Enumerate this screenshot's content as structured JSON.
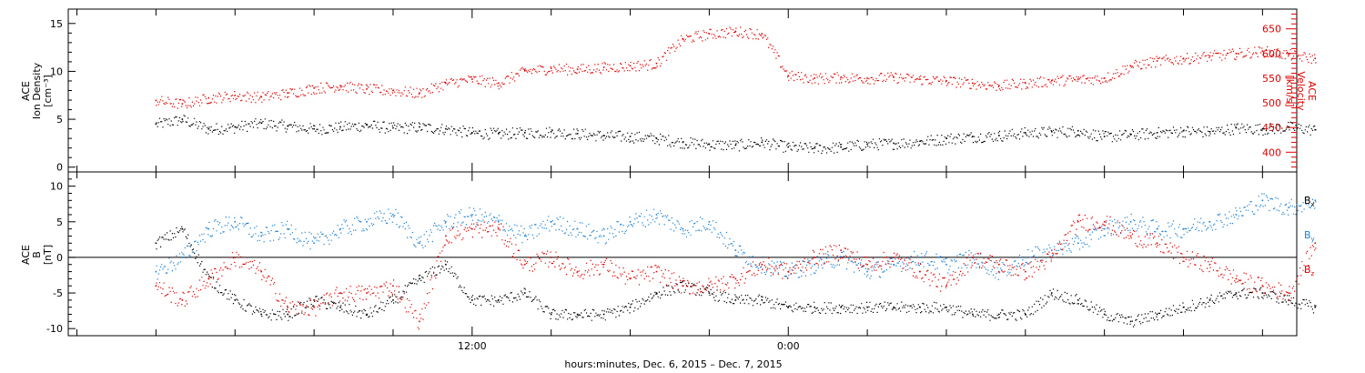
{
  "chart_data": [
    {
      "panel": "top",
      "type": "scatter",
      "ylabel_left": [
        "ACE",
        "Ion Density",
        "[cm⁻³]"
      ],
      "ylabel_right": [
        "ACE",
        "Velocity",
        "[km/s]"
      ],
      "ylim_left": [
        -0.5,
        16.5
      ],
      "yticks_left": [
        0,
        5,
        10,
        15
      ],
      "ylim_right": [
        360,
        690
      ],
      "yticks_right": [
        400,
        450,
        500,
        550,
        600,
        650
      ],
      "colors": {
        "density": "#000000",
        "velocity": "#e00000"
      },
      "series": [
        {
          "axis": "left",
          "color": "black",
          "x_hours": [
            0,
            1,
            2,
            3,
            4,
            5,
            6,
            7,
            8,
            9,
            10,
            11,
            12,
            13,
            14,
            15,
            16,
            17,
            18,
            19,
            20,
            21,
            22,
            23,
            24,
            25,
            26,
            27,
            28,
            29,
            30,
            31,
            32,
            33,
            34,
            35,
            36,
            37,
            38,
            39,
            40,
            41,
            42,
            43,
            44
          ],
          "values": [
            4.5,
            5.0,
            4.0,
            4.2,
            4.6,
            4.3,
            4.0,
            4.2,
            4.4,
            4.1,
            4.2,
            4.0,
            3.6,
            3.5,
            3.6,
            3.7,
            3.5,
            3.3,
            3.2,
            3.0,
            2.6,
            2.4,
            2.3,
            2.6,
            2.1,
            2.0,
            2.1,
            2.4,
            2.5,
            2.7,
            3.0,
            3.2,
            3.3,
            3.6,
            3.7,
            3.8,
            3.2,
            3.4,
            3.6,
            3.8,
            3.7,
            4.1,
            4.0,
            4.2,
            3.9
          ]
        },
        {
          "axis": "right",
          "color": "red",
          "x_hours": [
            0,
            1,
            2,
            3,
            4,
            5,
            6,
            7,
            8,
            9,
            10,
            11,
            12,
            13,
            14,
            15,
            16,
            17,
            18,
            19,
            20,
            21,
            22,
            23,
            24,
            25,
            26,
            27,
            28,
            29,
            30,
            31,
            32,
            33,
            34,
            35,
            36,
            37,
            38,
            39,
            40,
            41,
            42,
            43,
            44
          ],
          "values": [
            505,
            498,
            510,
            515,
            512,
            520,
            530,
            535,
            528,
            525,
            520,
            540,
            548,
            540,
            565,
            570,
            568,
            572,
            575,
            580,
            630,
            640,
            645,
            640,
            555,
            550,
            552,
            550,
            552,
            548,
            545,
            540,
            535,
            540,
            545,
            548,
            550,
            575,
            585,
            590,
            595,
            600,
            605,
            598,
            590
          ]
        }
      ]
    },
    {
      "panel": "bottom",
      "type": "scatter",
      "ylabel_left": [
        "ACE",
        "B",
        "[nT]"
      ],
      "ylim": [
        -11,
        12
      ],
      "yticks": [
        -10,
        -5,
        0,
        5,
        10
      ],
      "zero_line": true,
      "colors": {
        "Bx": "#000000",
        "By": "#1a7fd4",
        "Bz": "#e00000"
      },
      "legend": [
        {
          "label": "B",
          "sub": "x",
          "color": "#000000"
        },
        {
          "label": "B",
          "sub": "y",
          "color": "#1a7fd4"
        },
        {
          "label": "B",
          "sub": "z",
          "color": "#e00000"
        }
      ],
      "series": [
        {
          "name": "Bx",
          "color": "black",
          "x_hours": [
            0,
            1,
            2,
            3,
            4,
            5,
            6,
            7,
            8,
            9,
            10,
            11,
            12,
            13,
            14,
            15,
            16,
            17,
            18,
            19,
            20,
            21,
            22,
            23,
            24,
            25,
            26,
            27,
            28,
            29,
            30,
            31,
            32,
            33,
            34,
            35,
            36,
            37,
            38,
            39,
            40,
            41,
            42,
            43,
            44
          ],
          "values": [
            2,
            4,
            -3,
            -6,
            -8,
            -8,
            -6,
            -7,
            -8,
            -6,
            -3,
            -1,
            -6,
            -6,
            -5,
            -8,
            -8,
            -8,
            -7,
            -5,
            -4,
            -5,
            -6,
            -6,
            -7,
            -7,
            -7,
            -7,
            -7,
            -7,
            -7,
            -8,
            -8,
            -8,
            -5,
            -6,
            -8,
            -9,
            -8,
            -7,
            -6,
            -5,
            -5,
            -6,
            -7
          ]
        },
        {
          "name": "By",
          "color": "blue",
          "x_hours": [
            0,
            1,
            2,
            3,
            4,
            5,
            6,
            7,
            8,
            9,
            10,
            11,
            12,
            13,
            14,
            15,
            16,
            17,
            18,
            19,
            20,
            21,
            22,
            23,
            24,
            25,
            26,
            27,
            28,
            29,
            30,
            31,
            32,
            33,
            34,
            35,
            36,
            37,
            38,
            39,
            40,
            41,
            42,
            43,
            44
          ],
          "values": [
            -2,
            0,
            4,
            5,
            3,
            4,
            2,
            4,
            5,
            6,
            2,
            5,
            6,
            5,
            3,
            5,
            4,
            3,
            5,
            6,
            4,
            5,
            1,
            -1,
            -2,
            -1,
            0,
            -2,
            -1,
            0,
            -1,
            0,
            -2,
            0,
            1,
            2,
            4,
            5,
            4,
            4,
            5,
            6,
            8,
            7,
            8
          ]
        },
        {
          "name": "Bz",
          "color": "red",
          "x_hours": [
            0,
            1,
            2,
            3,
            4,
            5,
            6,
            7,
            8,
            9,
            10,
            11,
            12,
            13,
            14,
            15,
            16,
            17,
            18,
            19,
            20,
            21,
            22,
            23,
            24,
            25,
            26,
            27,
            28,
            29,
            30,
            31,
            32,
            33,
            34,
            35,
            36,
            37,
            38,
            39,
            40,
            41,
            42,
            43,
            44
          ],
          "values": [
            -4,
            -6,
            -3,
            0,
            -2,
            -7,
            -7,
            -5,
            -5,
            -4,
            -9,
            3,
            4,
            4,
            -1,
            0,
            -2,
            -1,
            -3,
            -2,
            -4,
            -4,
            -3,
            -1,
            -2,
            0,
            1,
            -1,
            0,
            -2,
            -4,
            0,
            -1,
            -2,
            0,
            5,
            5,
            3,
            2,
            0,
            -1,
            -3,
            -4,
            -5,
            2
          ]
        }
      ]
    },
    {
      "panel": "x_axis",
      "x_tick_labels": [
        {
          "label": "12:00",
          "hour": 12
        },
        {
          "label": "0:00",
          "hour": 24
        }
      ],
      "xlabel": "hours:minutes, Dec.  6, 2015 – Dec.  7, 2015",
      "xlim_hours": [
        -3.33,
        43.3
      ]
    }
  ]
}
